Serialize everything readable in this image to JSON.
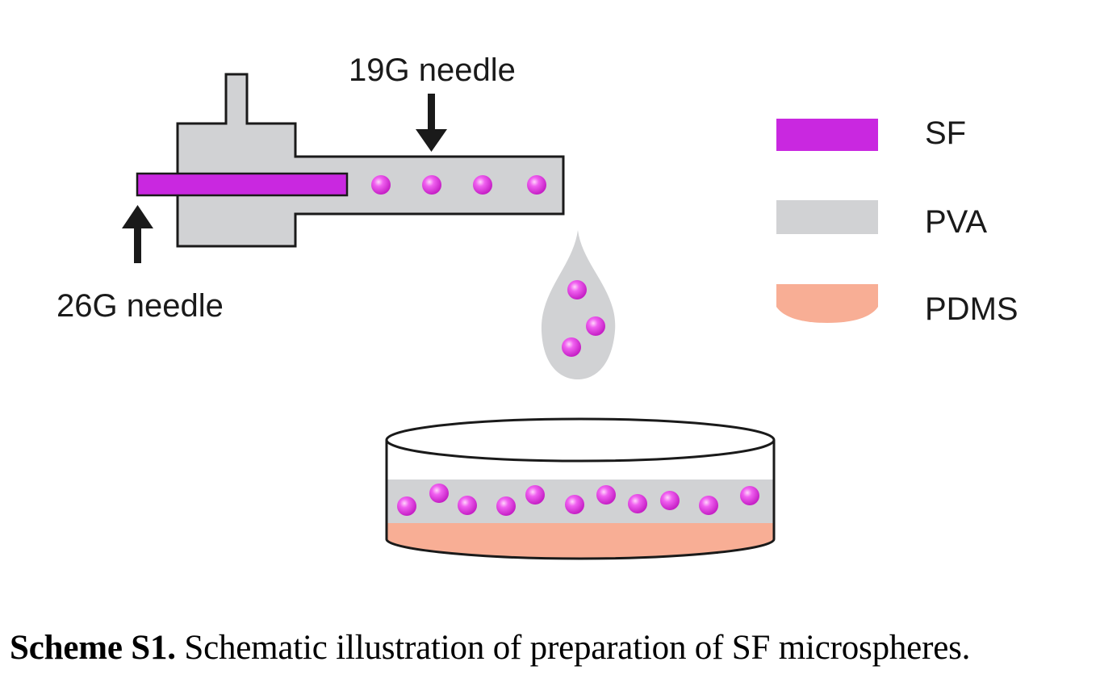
{
  "labels": {
    "needle_outer": "19G needle",
    "needle_inner": "26G needle"
  },
  "legend": [
    {
      "label": "SF",
      "color": "#c928e0"
    },
    {
      "label": "PVA",
      "color": "#d1d2d4"
    },
    {
      "label": "PDMS",
      "color": "#f8ae95"
    }
  ],
  "caption": {
    "bold": "Scheme S1.",
    "text": " Schematic illustration of preparation of SF microspheres."
  },
  "colors": {
    "sf": "#c928e0",
    "pva": "#d1d2d4",
    "pdms": "#f8ae95",
    "microsphere": "#e040e0",
    "outline": "#1a1a1a"
  }
}
